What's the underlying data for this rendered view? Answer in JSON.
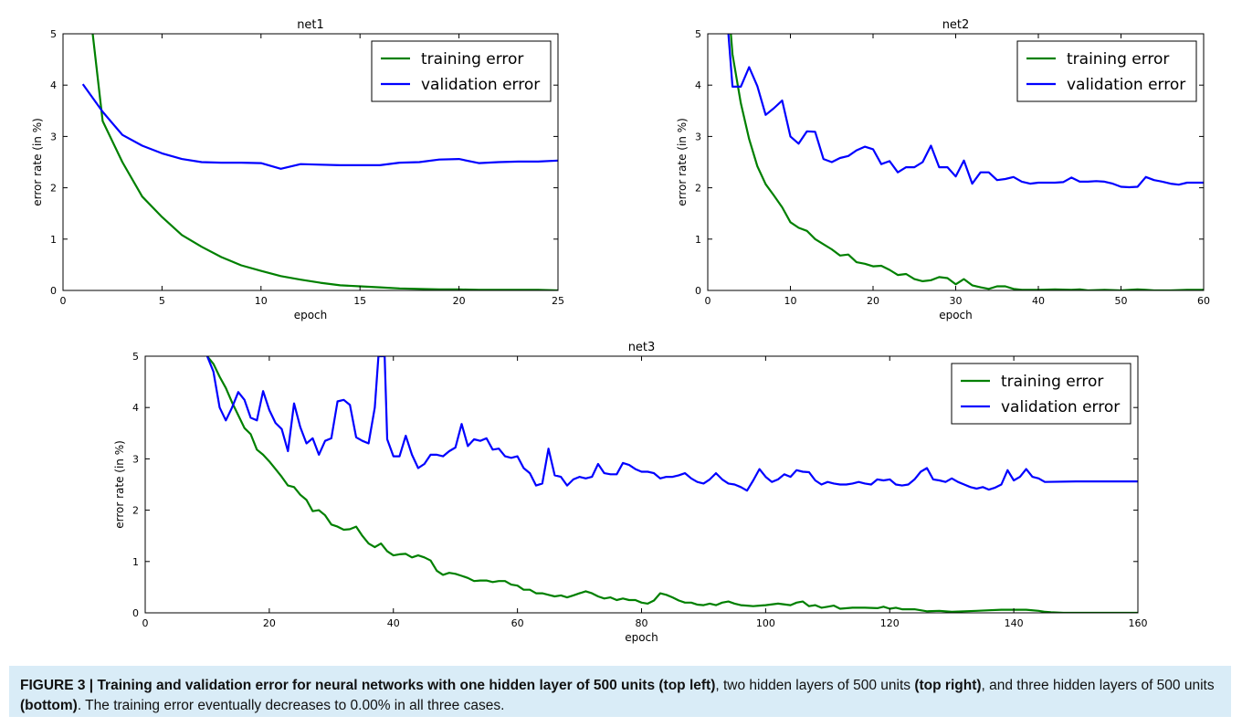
{
  "colors": {
    "training": "#008000",
    "validation": "#0000ff"
  },
  "chart_data": [
    {
      "type": "line",
      "title": "net1",
      "xlabel": "epoch",
      "ylabel": "error rate (in %)",
      "xlim": [
        0,
        25
      ],
      "ylim": [
        0,
        5
      ],
      "xticks": [
        "0",
        "5",
        "10",
        "15",
        "20",
        "25"
      ],
      "yticks": [
        "0",
        "1",
        "2",
        "3",
        "4",
        "5"
      ],
      "legend_position": "top-right",
      "series": [
        {
          "name": "training error",
          "x": [
            1.5,
            2,
            3,
            4,
            5,
            6,
            7,
            8,
            9,
            10,
            11,
            12,
            13,
            14,
            15,
            16,
            17,
            18,
            19,
            20,
            21,
            22,
            23,
            24,
            25
          ],
          "values": [
            5.0,
            3.3,
            2.5,
            1.83,
            1.43,
            1.08,
            0.85,
            0.65,
            0.49,
            0.38,
            0.28,
            0.21,
            0.15,
            0.1,
            0.08,
            0.06,
            0.04,
            0.03,
            0.02,
            0.02,
            0.01,
            0.01,
            0.01,
            0.01,
            0.0
          ]
        },
        {
          "name": "validation error",
          "x": [
            1,
            2,
            3,
            4,
            5,
            6,
            7,
            8,
            9,
            10,
            11,
            12,
            13,
            14,
            15,
            16,
            17,
            18,
            19,
            20,
            21,
            22,
            23,
            24,
            25
          ],
          "values": [
            4.02,
            3.48,
            3.03,
            2.82,
            2.67,
            2.56,
            2.5,
            2.49,
            2.49,
            2.48,
            2.37,
            2.46,
            2.45,
            2.44,
            2.44,
            2.44,
            2.49,
            2.5,
            2.55,
            2.56,
            2.48,
            2.5,
            2.51,
            2.51,
            2.53
          ]
        }
      ]
    },
    {
      "type": "line",
      "title": "net2",
      "xlabel": "epoch",
      "ylabel": "error rate (in %)",
      "xlim": [
        0,
        60
      ],
      "ylim": [
        0,
        5
      ],
      "xticks": [
        "0",
        "10",
        "20",
        "30",
        "40",
        "50",
        "60"
      ],
      "yticks": [
        "0",
        "1",
        "2",
        "3",
        "4",
        "5"
      ],
      "legend_position": "top-right",
      "series": [
        {
          "name": "training error",
          "x": [
            2.8,
            3,
            4,
            5,
            6,
            7,
            8,
            9,
            10,
            11,
            12,
            13,
            14,
            15,
            16,
            17,
            18,
            19,
            20,
            21,
            22,
            23,
            24,
            25,
            26,
            27,
            28,
            29,
            30,
            31,
            32,
            33,
            34,
            35,
            36,
            37,
            38,
            39,
            40,
            42,
            44,
            45,
            46,
            48,
            50,
            52,
            53,
            54,
            56,
            58,
            60
          ],
          "values": [
            5.0,
            4.6,
            3.65,
            2.95,
            2.42,
            2.07,
            1.85,
            1.62,
            1.33,
            1.22,
            1.16,
            1.0,
            0.9,
            0.8,
            0.68,
            0.7,
            0.55,
            0.52,
            0.47,
            0.48,
            0.4,
            0.3,
            0.32,
            0.22,
            0.18,
            0.2,
            0.26,
            0.24,
            0.12,
            0.22,
            0.1,
            0.06,
            0.03,
            0.08,
            0.08,
            0.03,
            0.01,
            0.01,
            0.01,
            0.02,
            0.01,
            0.02,
            0.0,
            0.01,
            0.0,
            0.02,
            0.01,
            0.0,
            0.0,
            0.01,
            0.01
          ]
        },
        {
          "name": "validation error",
          "x": [
            2.5,
            3,
            4,
            5,
            6,
            7,
            8,
            9,
            10,
            11,
            12,
            13,
            14,
            15,
            16,
            17,
            18,
            19,
            20,
            21,
            22,
            23,
            24,
            25,
            26,
            27,
            28,
            29,
            30,
            31,
            32,
            33,
            34,
            35,
            36,
            37,
            38,
            39,
            40,
            41,
            42,
            43,
            44,
            45,
            46,
            47,
            48,
            49,
            50,
            51,
            52,
            53,
            54,
            55,
            56,
            57,
            58,
            59,
            60
          ],
          "values": [
            5.0,
            3.97,
            3.97,
            4.35,
            3.98,
            3.42,
            3.55,
            3.7,
            3.0,
            2.86,
            3.1,
            3.09,
            2.56,
            2.5,
            2.58,
            2.62,
            2.73,
            2.8,
            2.75,
            2.46,
            2.52,
            2.3,
            2.4,
            2.4,
            2.5,
            2.82,
            2.4,
            2.4,
            2.22,
            2.53,
            2.08,
            2.3,
            2.3,
            2.15,
            2.17,
            2.21,
            2.12,
            2.08,
            2.1,
            2.1,
            2.1,
            2.11,
            2.2,
            2.12,
            2.12,
            2.13,
            2.12,
            2.08,
            2.02,
            2.01,
            2.02,
            2.21,
            2.15,
            2.12,
            2.08,
            2.06,
            2.1,
            2.1,
            2.1
          ]
        }
      ]
    },
    {
      "type": "line",
      "title": "net3",
      "xlabel": "epoch",
      "ylabel": "error rate (in %)",
      "xlim": [
        0,
        160
      ],
      "ylim": [
        0,
        5
      ],
      "xticks": [
        "0",
        "20",
        "40",
        "60",
        "80",
        "100",
        "120",
        "140",
        "160"
      ],
      "yticks": [
        "0",
        "1",
        "2",
        "3",
        "4",
        "5"
      ],
      "legend_position": "top-right",
      "series": [
        {
          "name": "training error",
          "x": [
            10,
            11,
            12,
            13,
            14,
            15,
            16,
            17,
            18,
            19,
            20,
            21,
            22,
            23,
            24,
            25,
            26,
            27,
            28,
            29,
            30,
            31,
            32,
            33,
            34,
            35,
            36,
            37,
            38,
            39,
            40,
            41,
            42,
            43,
            44,
            45,
            46,
            47,
            48,
            49,
            50,
            51,
            52,
            53,
            54,
            55,
            56,
            57,
            58,
            59,
            60,
            61,
            62,
            63,
            64,
            65,
            66,
            67,
            68,
            69,
            70,
            71,
            72,
            73,
            74,
            75,
            76,
            77,
            78,
            79,
            80,
            81,
            82,
            83,
            84,
            85,
            86,
            87,
            88,
            89,
            90,
            91,
            92,
            93,
            94,
            95,
            96,
            97,
            98,
            99,
            100,
            102,
            104,
            105,
            106,
            107,
            108,
            109,
            110,
            111,
            112,
            114,
            116,
            118,
            119,
            120,
            121,
            122,
            124,
            126,
            128,
            130,
            132,
            134,
            136,
            138,
            140,
            142,
            144,
            145,
            146,
            148,
            150,
            155,
            160
          ],
          "values": [
            5.0,
            4.85,
            4.6,
            4.38,
            4.1,
            3.85,
            3.6,
            3.48,
            3.18,
            3.08,
            2.95,
            2.8,
            2.65,
            2.48,
            2.45,
            2.3,
            2.2,
            1.98,
            2.0,
            1.9,
            1.72,
            1.68,
            1.62,
            1.63,
            1.68,
            1.5,
            1.35,
            1.28,
            1.35,
            1.2,
            1.12,
            1.14,
            1.15,
            1.08,
            1.12,
            1.08,
            1.02,
            0.82,
            0.74,
            0.78,
            0.76,
            0.72,
            0.68,
            0.62,
            0.63,
            0.63,
            0.6,
            0.62,
            0.62,
            0.55,
            0.53,
            0.45,
            0.45,
            0.38,
            0.38,
            0.35,
            0.32,
            0.34,
            0.3,
            0.34,
            0.38,
            0.42,
            0.38,
            0.32,
            0.28,
            0.3,
            0.25,
            0.28,
            0.25,
            0.25,
            0.2,
            0.18,
            0.24,
            0.38,
            0.35,
            0.3,
            0.24,
            0.2,
            0.2,
            0.16,
            0.15,
            0.18,
            0.15,
            0.2,
            0.22,
            0.18,
            0.15,
            0.14,
            0.13,
            0.14,
            0.15,
            0.18,
            0.15,
            0.2,
            0.22,
            0.13,
            0.15,
            0.1,
            0.12,
            0.14,
            0.08,
            0.1,
            0.1,
            0.09,
            0.12,
            0.08,
            0.1,
            0.07,
            0.07,
            0.03,
            0.04,
            0.02,
            0.03,
            0.04,
            0.05,
            0.06,
            0.06,
            0.06,
            0.04,
            0.02,
            0.01,
            0.0,
            0.0,
            0.0,
            0.0
          ]
        },
        {
          "name": "validation error",
          "x": [
            10,
            11,
            12,
            13,
            14,
            15,
            16,
            17,
            18,
            19,
            20,
            21,
            22,
            23,
            24,
            25,
            26,
            27,
            28,
            29,
            30,
            31,
            32,
            33,
            34,
            35,
            36,
            37,
            37.6,
            38,
            38.6,
            39,
            40,
            41,
            42,
            43,
            44,
            45,
            46,
            47,
            48,
            49,
            50,
            51,
            52,
            53,
            54,
            55,
            56,
            57,
            58,
            59,
            60,
            61,
            62,
            63,
            64,
            65,
            66,
            67,
            68,
            69,
            70,
            71,
            72,
            73,
            74,
            75,
            76,
            77,
            78,
            79,
            80,
            81,
            82,
            83,
            84,
            85,
            86,
            87,
            88,
            89,
            90,
            91,
            92,
            93,
            94,
            95,
            96,
            97,
            98,
            99,
            100,
            101,
            102,
            103,
            104,
            105,
            106,
            107,
            108,
            109,
            110,
            111,
            112,
            113,
            114,
            115,
            116,
            117,
            118,
            119,
            120,
            121,
            122,
            123,
            124,
            125,
            126,
            127,
            128,
            129,
            130,
            131,
            132,
            133,
            134,
            135,
            136,
            137,
            138,
            139,
            140,
            141,
            142,
            143,
            144,
            145,
            150,
            155,
            160
          ],
          "values": [
            5.0,
            4.7,
            4.0,
            3.75,
            4.0,
            4.3,
            4.15,
            3.8,
            3.75,
            4.32,
            3.95,
            3.7,
            3.58,
            3.15,
            4.08,
            3.62,
            3.3,
            3.4,
            3.08,
            3.35,
            3.4,
            4.12,
            4.15,
            4.05,
            3.42,
            3.35,
            3.3,
            4.0,
            5.0,
            5.0,
            5.0,
            3.38,
            3.05,
            3.05,
            3.45,
            3.08,
            2.82,
            2.9,
            3.08,
            3.08,
            3.05,
            3.15,
            3.22,
            3.68,
            3.25,
            3.38,
            3.35,
            3.4,
            3.18,
            3.2,
            3.05,
            3.02,
            3.05,
            2.82,
            2.72,
            2.48,
            2.52,
            3.2,
            2.68,
            2.65,
            2.48,
            2.6,
            2.65,
            2.62,
            2.65,
            2.9,
            2.72,
            2.7,
            2.7,
            2.92,
            2.88,
            2.8,
            2.75,
            2.75,
            2.72,
            2.62,
            2.65,
            2.65,
            2.68,
            2.72,
            2.62,
            2.55,
            2.52,
            2.6,
            2.72,
            2.6,
            2.52,
            2.5,
            2.45,
            2.38,
            2.58,
            2.8,
            2.65,
            2.55,
            2.6,
            2.7,
            2.65,
            2.78,
            2.75,
            2.74,
            2.58,
            2.5,
            2.55,
            2.52,
            2.5,
            2.5,
            2.52,
            2.55,
            2.52,
            2.5,
            2.6,
            2.58,
            2.6,
            2.5,
            2.48,
            2.5,
            2.6,
            2.75,
            2.82,
            2.6,
            2.58,
            2.55,
            2.62,
            2.55,
            2.5,
            2.45,
            2.42,
            2.45,
            2.4,
            2.44,
            2.5,
            2.78,
            2.58,
            2.65,
            2.8,
            2.65,
            2.62,
            2.55,
            2.56,
            2.56,
            2.56
          ]
        }
      ]
    }
  ],
  "caption": {
    "label": "FIGURE 3 | ",
    "bold_intro": "Training and validation error for neural networks with one hidden layer of 500 units (top left)",
    "text1": ", two hidden layers of 500 units ",
    "bold2": "(top right)",
    "text2": ", and three hidden layers of 500 units ",
    "bold3": "(bottom)",
    "text3": ". The training error eventually decreases to 0.00% in all three cases."
  }
}
